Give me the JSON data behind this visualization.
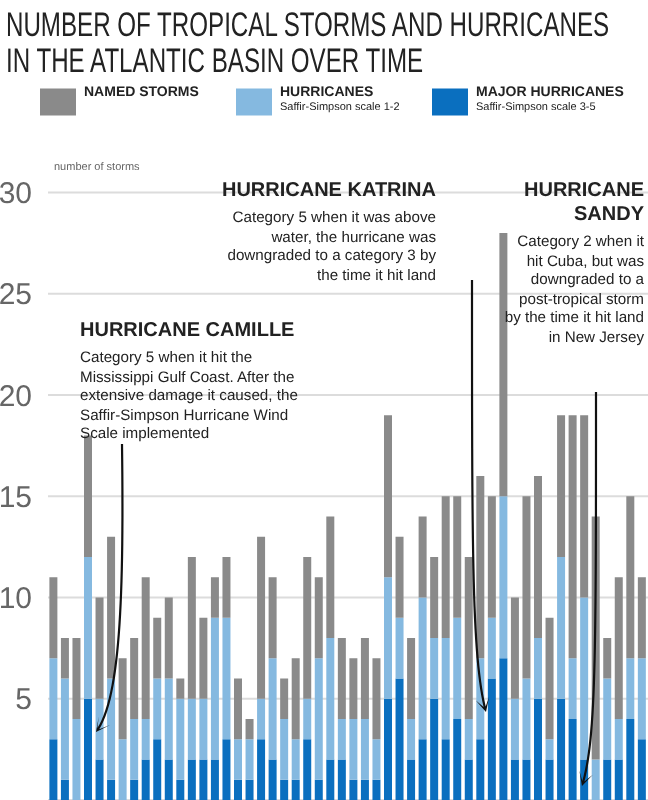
{
  "chart_data": {
    "type": "bar",
    "title": "NUMBER OF TROPICAL STORMS AND HURRICANES IN THE ATLANTIC BASIN OVER TIME",
    "ylabel": "number of storms",
    "stacked": true,
    "categories": [
      null,
      null,
      null,
      null,
      null,
      null,
      null,
      null,
      null,
      null,
      null,
      null,
      null,
      null,
      null,
      null,
      null,
      null,
      null,
      null,
      null,
      null,
      null,
      null,
      null,
      null,
      null,
      null,
      null,
      null,
      null,
      null,
      null,
      null,
      null,
      null,
      null,
      null,
      null,
      null,
      null,
      null,
      null,
      null,
      null,
      null,
      null,
      null,
      null,
      null,
      null,
      null
    ],
    "series": [
      {
        "name": "MAJOR HURRICANES",
        "color": "#0a6fbf",
        "values": [
          3,
          1,
          0,
          5,
          2,
          1,
          0,
          1,
          2,
          3,
          2,
          1,
          2,
          2,
          2,
          3,
          1,
          1,
          3,
          2,
          1,
          1,
          3,
          1,
          2,
          2,
          1,
          1,
          1,
          5,
          6,
          2,
          3,
          5,
          3,
          4,
          2,
          3,
          6,
          7,
          2,
          2,
          5,
          2,
          5,
          4,
          2,
          0,
          2,
          2,
          4,
          3
        ]
      },
      {
        "name": "HURRICANES",
        "color": "#85b9e0",
        "values": [
          4,
          5,
          4,
          7,
          3,
          5,
          3,
          3,
          2,
          3,
          4,
          4,
          3,
          3,
          7,
          6,
          2,
          2,
          2,
          5,
          3,
          2,
          2,
          6,
          6,
          2,
          3,
          3,
          2,
          6,
          3,
          2,
          7,
          3,
          5,
          5,
          2,
          4,
          3,
          8,
          3,
          4,
          3,
          1,
          7,
          3,
          8,
          2,
          4,
          2,
          3,
          4
        ]
      },
      {
        "name": "NAMED STORMS",
        "color": "#8a8a8a",
        "values": [
          4,
          2,
          4,
          6,
          5,
          7,
          4,
          4,
          7,
          3,
          4,
          1,
          7,
          4,
          2,
          3,
          3,
          1,
          8,
          4,
          2,
          4,
          7,
          4,
          6,
          4,
          3,
          4,
          4,
          8,
          4,
          4,
          4,
          4,
          7,
          6,
          8,
          9,
          6,
          13,
          5,
          9,
          8,
          6,
          7,
          12,
          9,
          12,
          2,
          7,
          8,
          4
        ]
      }
    ],
    "ylim": [
      0,
      30
    ],
    "yticks": [
      5,
      10,
      15,
      20,
      25,
      30
    ],
    "grid": "y",
    "legend": "top",
    "tick_labels": "y",
    "annotations": [
      "Saffir-Simpson scale 3-5",
      "Saffir-Simpson scale 1-2",
      "HURRICANE CAMILLE",
      "Category 5 when it hit the Mississippi Gulf Coast. After the extensive damage it caused, the Saffir-Simpson Hurricane Wind Scale implemented",
      "HURRICANE KATRINA",
      "Category 5 when it was above water, the hurricane was downgraded to a category 3 by the time it hit land",
      "HURRICANE SANDY",
      "Category 2 when it hit Cuba, but was downgraded to a post-tropical storm by the time it hit land in New Jersey"
    ]
  }
}
